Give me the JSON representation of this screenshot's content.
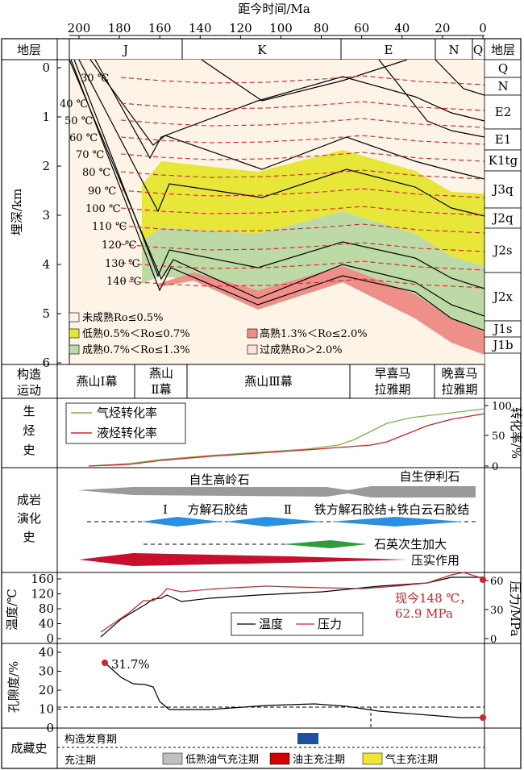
{
  "top_axis": {
    "title": "距今时间/Ma",
    "ticks": [
      "200",
      "180",
      "160",
      "140",
      "120",
      "100",
      "80",
      "60",
      "40",
      "20",
      "0"
    ]
  },
  "strata_header": {
    "left_label": "地层",
    "right_label": "地层",
    "periods": [
      "J",
      "K",
      "E",
      "N",
      "Q"
    ]
  },
  "burial": {
    "ylabel": "埋深/km",
    "depth_ticks": [
      "0",
      "1",
      "2",
      "3",
      "4",
      "5",
      "6"
    ],
    "isotherms": [
      "30 ℃",
      "40 ℃",
      "50 ℃",
      "60 ℃",
      "70 ℃",
      "80 ℃",
      "90 ℃",
      "100 ℃",
      "110 ℃",
      "120 ℃",
      "130 ℃",
      "140 ℃"
    ],
    "formations": [
      "Q",
      "N",
      "E2",
      "E1",
      "K1tg",
      "J3q",
      "J2q",
      "J2s",
      "J2x",
      "J1s",
      "J1b"
    ],
    "legend": {
      "immature": "未成熟Ro≤0.5%",
      "low": "低熟0.5%＜Ro≤0.7%",
      "mature": "成熟0.7%＜Ro≤1.3%",
      "high": "高熟1.3%＜Ro≤2.0%",
      "over": "过成熟Ro＞2.0%"
    }
  },
  "tectonic": {
    "label_1": "构造",
    "label_2": "运动",
    "phases": [
      "燕山Ⅰ幕",
      "燕山",
      "Ⅱ幕",
      "燕山Ⅲ幕",
      "早喜马",
      "拉雅期",
      "晚喜马",
      "拉雅期"
    ]
  },
  "hydrocarbon": {
    "label": [
      "生",
      "烃",
      "史"
    ],
    "legend_gas": "气烃转化率",
    "legend_oil": "液烃转化率",
    "ylabel": "转化率/%",
    "ticks": [
      "100",
      "50",
      "0"
    ],
    "colors": {
      "gas": "#7ab648",
      "oil": "#d2232a"
    }
  },
  "diagenesis": {
    "label": [
      "成岩",
      "演化",
      "史"
    ],
    "kaolinite": "自生高岭石",
    "illite": "自生伊利石",
    "stage_1": "Ⅰ",
    "calcite": "方解石胶结",
    "stage_2": "Ⅱ",
    "ferro": "铁方解石胶结+铁白云石胶结",
    "quartz": "石英次生加大",
    "compaction": "压实作用"
  },
  "temp_pressure": {
    "ylabel_left": "温度/℃",
    "ylabel_right": "压力/MPa",
    "left_ticks": [
      "160",
      "120",
      "80",
      "40",
      "0"
    ],
    "right_ticks": [
      "60",
      "30",
      "0"
    ],
    "legend_temp": "温度",
    "legend_press": "压力",
    "annotation_1": "现今148 ℃，",
    "annotation_2": "62.9 MPa"
  },
  "porosity": {
    "ylabel": "孔隙度/%",
    "ticks": [
      "40",
      "30",
      "20",
      "10",
      "0"
    ],
    "label_max": "31.7%"
  },
  "accumulation": {
    "label": "成藏史",
    "structure": "构造发育期",
    "charge": "充注期",
    "legend_low": "低熟油气充注期",
    "legend_oil": "油主充注期",
    "legend_gas": "气主充注期"
  }
}
